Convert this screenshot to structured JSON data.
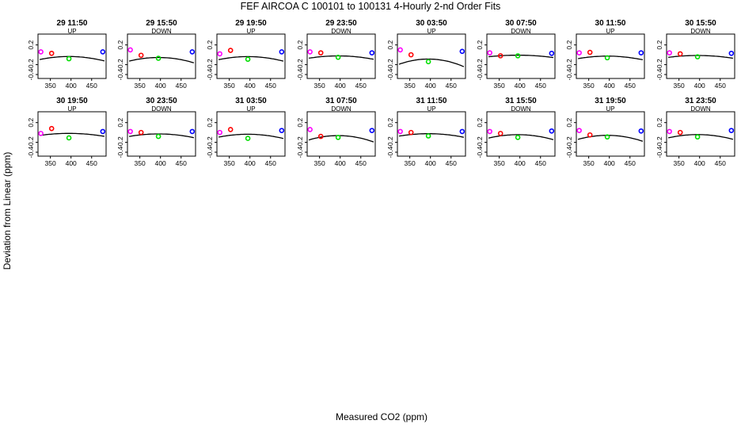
{
  "figure": {
    "title": "FEF   AIRCOA C   100101 to 100131   4-Hourly 2-nd Order Fits",
    "ylabel": "Deviation from Linear (ppm)",
    "xlabel": "Measured CO2 (ppm)"
  },
  "chart_data": [
    {
      "type": "scatter",
      "title": "29 11:50",
      "mode": "UP",
      "xlim": [
        320,
        485
      ],
      "ylim": [
        -0.48,
        0.42
      ],
      "xticks": [
        350,
        400,
        450
      ],
      "yticks": [
        -0.4,
        -0.2,
        0.2
      ],
      "points": [
        {
          "x": 327,
          "y": 0.06,
          "color": "#ff00ff"
        },
        {
          "x": 353,
          "y": 0.03,
          "color": "#ff0000"
        },
        {
          "x": 395,
          "y": -0.08,
          "color": "#00dd00"
        },
        {
          "x": 477,
          "y": 0.06,
          "color": "#0000ff"
        }
      ],
      "curve": [
        0.061,
        -1.22e-05,
        395
      ]
    },
    {
      "type": "scatter",
      "title": "29 15:50",
      "mode": "DOWN",
      "xlim": [
        320,
        485
      ],
      "ylim": [
        -0.48,
        0.42
      ],
      "xticks": [
        350,
        400,
        450
      ],
      "yticks": [
        -0.4,
        -0.2,
        0.2
      ],
      "points": [
        {
          "x": 327,
          "y": 0.1,
          "color": "#ff00ff"
        },
        {
          "x": 353,
          "y": -0.01,
          "color": "#ff0000"
        },
        {
          "x": 395,
          "y": -0.07,
          "color": "#00dd00"
        },
        {
          "x": 477,
          "y": 0.06,
          "color": "#0000ff"
        }
      ],
      "curve": [
        0.083,
        -1.46e-05,
        395
      ]
    },
    {
      "type": "scatter",
      "title": "29 19:50",
      "mode": "UP",
      "xlim": [
        320,
        485
      ],
      "ylim": [
        -0.48,
        0.42
      ],
      "xticks": [
        350,
        400,
        450
      ],
      "yticks": [
        -0.4,
        -0.2,
        0.2
      ],
      "points": [
        {
          "x": 327,
          "y": 0.02,
          "color": "#ff00ff"
        },
        {
          "x": 353,
          "y": 0.09,
          "color": "#ff0000"
        },
        {
          "x": 395,
          "y": -0.09,
          "color": "#00dd00"
        },
        {
          "x": 477,
          "y": 0.06,
          "color": "#0000ff"
        }
      ],
      "curve": [
        0.063,
        -1.24e-05,
        395
      ]
    },
    {
      "type": "scatter",
      "title": "29 23:50",
      "mode": "DOWN",
      "xlim": [
        320,
        485
      ],
      "ylim": [
        -0.48,
        0.42
      ],
      "xticks": [
        350,
        400,
        450
      ],
      "yticks": [
        -0.4,
        -0.2,
        0.2
      ],
      "points": [
        {
          "x": 327,
          "y": 0.06,
          "color": "#ff00ff"
        },
        {
          "x": 353,
          "y": 0.04,
          "color": "#ff0000"
        },
        {
          "x": 395,
          "y": -0.05,
          "color": "#00dd00"
        },
        {
          "x": 477,
          "y": 0.04,
          "color": "#0000ff"
        }
      ],
      "curve": [
        0.047,
        -9.3e-06,
        395
      ]
    },
    {
      "type": "scatter",
      "title": "30 03:50",
      "mode": "UP",
      "xlim": [
        320,
        485
      ],
      "ylim": [
        -0.48,
        0.42
      ],
      "xticks": [
        350,
        400,
        450
      ],
      "yticks": [
        -0.4,
        -0.2,
        0.2
      ],
      "points": [
        {
          "x": 327,
          "y": 0.1,
          "color": "#ff00ff"
        },
        {
          "x": 353,
          "y": 0.0,
          "color": "#ff0000"
        },
        {
          "x": 395,
          "y": -0.14,
          "color": "#00dd00"
        },
        {
          "x": 477,
          "y": 0.07,
          "color": "#0000ff"
        }
      ],
      "curve": [
        0.118,
        -2.09e-05,
        395
      ]
    },
    {
      "type": "scatter",
      "title": "30 07:50",
      "mode": "DOWN",
      "xlim": [
        320,
        485
      ],
      "ylim": [
        -0.48,
        0.42
      ],
      "xticks": [
        350,
        400,
        450
      ],
      "yticks": [
        -0.4,
        -0.2,
        0.2
      ],
      "points": [
        {
          "x": 327,
          "y": 0.04,
          "color": "#ff00ff"
        },
        {
          "x": 353,
          "y": -0.02,
          "color": "#ff0000"
        },
        {
          "x": 395,
          "y": -0.02,
          "color": "#00dd00"
        },
        {
          "x": 477,
          "y": 0.03,
          "color": "#0000ff"
        }
      ],
      "curve": [
        0.031,
        -6.4e-06,
        395
      ]
    },
    {
      "type": "scatter",
      "title": "30 11:50",
      "mode": "UP",
      "xlim": [
        320,
        485
      ],
      "ylim": [
        -0.48,
        0.42
      ],
      "xticks": [
        350,
        400,
        450
      ],
      "yticks": [
        -0.4,
        -0.2,
        0.2
      ],
      "points": [
        {
          "x": 327,
          "y": 0.04,
          "color": "#ff00ff"
        },
        {
          "x": 353,
          "y": 0.05,
          "color": "#ff0000"
        },
        {
          "x": 395,
          "y": -0.06,
          "color": "#00dd00"
        },
        {
          "x": 477,
          "y": 0.04,
          "color": "#0000ff"
        }
      ],
      "curve": [
        0.052,
        -1.01e-05,
        395
      ]
    },
    {
      "type": "scatter",
      "title": "30 15:50",
      "mode": "DOWN",
      "xlim": [
        320,
        485
      ],
      "ylim": [
        -0.48,
        0.42
      ],
      "xticks": [
        350,
        400,
        450
      ],
      "yticks": [
        -0.4,
        -0.2,
        0.2
      ],
      "points": [
        {
          "x": 327,
          "y": 0.04,
          "color": "#ff00ff"
        },
        {
          "x": 353,
          "y": 0.02,
          "color": "#ff0000"
        },
        {
          "x": 395,
          "y": -0.04,
          "color": "#00dd00"
        },
        {
          "x": 477,
          "y": 0.03,
          "color": "#0000ff"
        }
      ],
      "curve": [
        0.038,
        -7.5e-06,
        395
      ]
    },
    {
      "type": "scatter",
      "title": "30 19:50",
      "mode": "UP",
      "xlim": [
        320,
        485
      ],
      "ylim": [
        -0.48,
        0.42
      ],
      "xticks": [
        350,
        400,
        450
      ],
      "yticks": [
        -0.4,
        -0.2,
        0.2
      ],
      "points": [
        {
          "x": 327,
          "y": -0.02,
          "color": "#ff00ff"
        },
        {
          "x": 353,
          "y": 0.08,
          "color": "#ff0000"
        },
        {
          "x": 395,
          "y": -0.11,
          "color": "#00dd00"
        },
        {
          "x": 477,
          "y": 0.02,
          "color": "#0000ff"
        }
      ],
      "curve": [
        0.043,
        -8.1e-06,
        395
      ]
    },
    {
      "type": "scatter",
      "title": "30 23:50",
      "mode": "DOWN",
      "xlim": [
        320,
        485
      ],
      "ylim": [
        -0.48,
        0.42
      ],
      "xticks": [
        350,
        400,
        450
      ],
      "yticks": [
        -0.4,
        -0.2,
        0.2
      ],
      "points": [
        {
          "x": 327,
          "y": 0.02,
          "color": "#ff00ff"
        },
        {
          "x": 353,
          "y": 0.0,
          "color": "#ff0000"
        },
        {
          "x": 395,
          "y": -0.08,
          "color": "#00dd00"
        },
        {
          "x": 477,
          "y": 0.02,
          "color": "#0000ff"
        }
      ],
      "curve": [
        0.055,
        -1.03e-05,
        395
      ]
    },
    {
      "type": "scatter",
      "title": "31 03:50",
      "mode": "UP",
      "xlim": [
        320,
        485
      ],
      "ylim": [
        -0.48,
        0.42
      ],
      "xticks": [
        350,
        400,
        450
      ],
      "yticks": [
        -0.4,
        -0.2,
        0.2
      ],
      "points": [
        {
          "x": 327,
          "y": 0.0,
          "color": "#ff00ff"
        },
        {
          "x": 353,
          "y": 0.06,
          "color": "#ff0000"
        },
        {
          "x": 395,
          "y": -0.12,
          "color": "#00dd00"
        },
        {
          "x": 477,
          "y": 0.04,
          "color": "#0000ff"
        }
      ],
      "curve": [
        0.062,
        -1.17e-05,
        395
      ]
    },
    {
      "type": "scatter",
      "title": "31 07:50",
      "mode": "DOWN",
      "xlim": [
        320,
        485
      ],
      "ylim": [
        -0.48,
        0.42
      ],
      "xticks": [
        350,
        400,
        450
      ],
      "yticks": [
        -0.4,
        -0.2,
        0.2
      ],
      "points": [
        {
          "x": 327,
          "y": 0.06,
          "color": "#ff00ff"
        },
        {
          "x": 353,
          "y": -0.08,
          "color": "#ff0000"
        },
        {
          "x": 395,
          "y": -0.1,
          "color": "#00dd00"
        },
        {
          "x": 477,
          "y": 0.04,
          "color": "#0000ff"
        }
      ],
      "curve": [
        0.093,
        -1.74e-05,
        395
      ]
    },
    {
      "type": "scatter",
      "title": "31 11:50",
      "mode": "UP",
      "xlim": [
        320,
        485
      ],
      "ylim": [
        -0.48,
        0.42
      ],
      "xticks": [
        350,
        400,
        450
      ],
      "yticks": [
        -0.4,
        -0.2,
        0.2
      ],
      "points": [
        {
          "x": 327,
          "y": 0.02,
          "color": "#ff00ff"
        },
        {
          "x": 353,
          "y": 0.0,
          "color": "#ff0000"
        },
        {
          "x": 395,
          "y": -0.07,
          "color": "#00dd00"
        },
        {
          "x": 477,
          "y": 0.02,
          "color": "#0000ff"
        }
      ],
      "curve": [
        0.05,
        -9.7e-06,
        395
      ]
    },
    {
      "type": "scatter",
      "title": "31 15:50",
      "mode": "DOWN",
      "xlim": [
        320,
        485
      ],
      "ylim": [
        -0.48,
        0.42
      ],
      "xticks": [
        350,
        400,
        450
      ],
      "yticks": [
        -0.4,
        -0.2,
        0.2
      ],
      "points": [
        {
          "x": 327,
          "y": 0.02,
          "color": "#ff00ff"
        },
        {
          "x": 353,
          "y": -0.02,
          "color": "#ff0000"
        },
        {
          "x": 395,
          "y": -0.1,
          "color": "#00dd00"
        },
        {
          "x": 477,
          "y": 0.03,
          "color": "#0000ff"
        }
      ],
      "curve": [
        0.072,
        -1.36e-05,
        395
      ]
    },
    {
      "type": "scatter",
      "title": "31 19:50",
      "mode": "UP",
      "xlim": [
        320,
        485
      ],
      "ylim": [
        -0.48,
        0.42
      ],
      "xticks": [
        350,
        400,
        450
      ],
      "yticks": [
        -0.4,
        -0.2,
        0.2
      ],
      "points": [
        {
          "x": 327,
          "y": 0.04,
          "color": "#ff00ff"
        },
        {
          "x": 353,
          "y": -0.05,
          "color": "#ff0000"
        },
        {
          "x": 395,
          "y": -0.09,
          "color": "#00dd00"
        },
        {
          "x": 477,
          "y": 0.03,
          "color": "#0000ff"
        }
      ],
      "curve": [
        0.087,
        -1.63e-05,
        395
      ]
    },
    {
      "type": "scatter",
      "title": "31 23:50",
      "mode": "DOWN",
      "xlim": [
        320,
        485
      ],
      "ylim": [
        -0.48,
        0.42
      ],
      "xticks": [
        350,
        400,
        450
      ],
      "yticks": [
        -0.4,
        -0.2,
        0.2
      ],
      "points": [
        {
          "x": 327,
          "y": 0.02,
          "color": "#ff00ff"
        },
        {
          "x": 353,
          "y": 0.0,
          "color": "#ff0000"
        },
        {
          "x": 395,
          "y": -0.09,
          "color": "#00dd00"
        },
        {
          "x": 477,
          "y": 0.04,
          "color": "#0000ff"
        }
      ],
      "curve": [
        0.07,
        -1.31e-05,
        395
      ]
    }
  ]
}
